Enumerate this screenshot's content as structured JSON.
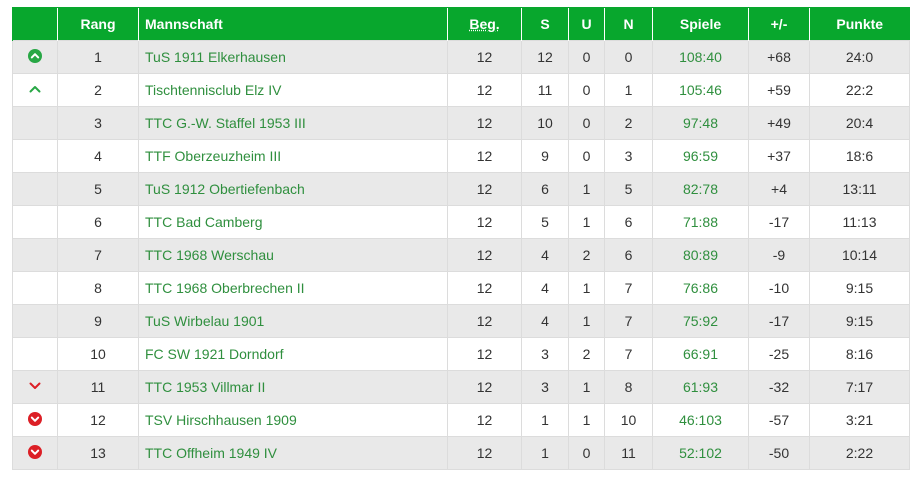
{
  "headers": {
    "trend": "",
    "rank": "Rang",
    "team": "Mannschaft",
    "played": "Beg.",
    "won": "S",
    "draw": "U",
    "lost": "N",
    "games": "Spiele",
    "diff": "+/-",
    "points": "Punkte"
  },
  "colors": {
    "header_bg": "#08a72d",
    "up_icon": "#28a745",
    "down_icon": "#dc1f26",
    "team_link": "#2f8f3e"
  },
  "rows": [
    {
      "trend": "up-circle-icon",
      "rank": "1",
      "team": "TuS 1911 Elkerhausen",
      "played": "12",
      "won": "12",
      "draw": "0",
      "lost": "0",
      "games": "108:40",
      "diff": "+68",
      "points": "24:0"
    },
    {
      "trend": "up-chevron-icon",
      "rank": "2",
      "team": "Tischtennisclub Elz IV",
      "played": "12",
      "won": "11",
      "draw": "0",
      "lost": "1",
      "games": "105:46",
      "diff": "+59",
      "points": "22:2"
    },
    {
      "trend": "",
      "rank": "3",
      "team": "TTC G.-W. Staffel 1953 III",
      "played": "12",
      "won": "10",
      "draw": "0",
      "lost": "2",
      "games": "97:48",
      "diff": "+49",
      "points": "20:4"
    },
    {
      "trend": "",
      "rank": "4",
      "team": "TTF Oberzeuzheim III",
      "played": "12",
      "won": "9",
      "draw": "0",
      "lost": "3",
      "games": "96:59",
      "diff": "+37",
      "points": "18:6"
    },
    {
      "trend": "",
      "rank": "5",
      "team": "TuS 1912 Obertiefenbach",
      "played": "12",
      "won": "6",
      "draw": "1",
      "lost": "5",
      "games": "82:78",
      "diff": "+4",
      "points": "13:11"
    },
    {
      "trend": "",
      "rank": "6",
      "team": "TTC Bad Camberg",
      "played": "12",
      "won": "5",
      "draw": "1",
      "lost": "6",
      "games": "71:88",
      "diff": "-17",
      "points": "11:13"
    },
    {
      "trend": "",
      "rank": "7",
      "team": "TTC 1968 Werschau",
      "played": "12",
      "won": "4",
      "draw": "2",
      "lost": "6",
      "games": "80:89",
      "diff": "-9",
      "points": "10:14"
    },
    {
      "trend": "",
      "rank": "8",
      "team": "TTC 1968 Oberbrechen II",
      "played": "12",
      "won": "4",
      "draw": "1",
      "lost": "7",
      "games": "76:86",
      "diff": "-10",
      "points": "9:15"
    },
    {
      "trend": "",
      "rank": "9",
      "team": "TuS Wirbelau 1901",
      "played": "12",
      "won": "4",
      "draw": "1",
      "lost": "7",
      "games": "75:92",
      "diff": "-17",
      "points": "9:15"
    },
    {
      "trend": "",
      "rank": "10",
      "team": "FC SW 1921 Dorndorf",
      "played": "12",
      "won": "3",
      "draw": "2",
      "lost": "7",
      "games": "66:91",
      "diff": "-25",
      "points": "8:16"
    },
    {
      "trend": "down-chevron-icon",
      "rank": "11",
      "team": "TTC 1953 Villmar II",
      "played": "12",
      "won": "3",
      "draw": "1",
      "lost": "8",
      "games": "61:93",
      "diff": "-32",
      "points": "7:17"
    },
    {
      "trend": "down-circle-icon",
      "rank": "12",
      "team": "TSV Hirschhausen 1909",
      "played": "12",
      "won": "1",
      "draw": "1",
      "lost": "10",
      "games": "46:103",
      "diff": "-57",
      "points": "3:21"
    },
    {
      "trend": "down-circle-icon",
      "rank": "13",
      "team": "TTC Offheim 1949 IV",
      "played": "12",
      "won": "1",
      "draw": "0",
      "lost": "11",
      "games": "52:102",
      "diff": "-50",
      "points": "2:22"
    }
  ]
}
